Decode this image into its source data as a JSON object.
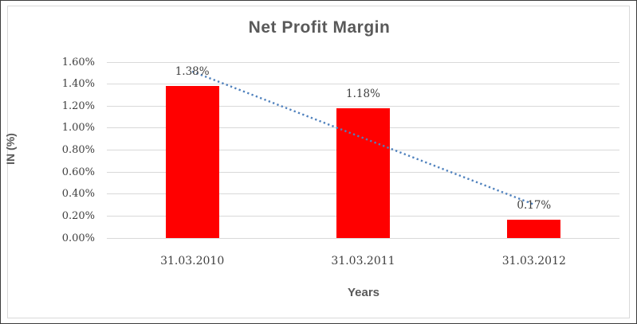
{
  "chart_data": {
    "type": "bar",
    "title": "Net Profit Margin",
    "xlabel": "Years",
    "ylabel": "IN (%)",
    "categories": [
      "31.03.2010",
      "31.03.2011",
      "31.03.2012"
    ],
    "values": [
      1.38,
      1.18,
      0.17
    ],
    "data_labels": [
      "1.38%",
      "1.18%",
      "0.17%"
    ],
    "y_ticks": [
      "1.60%",
      "1.40%",
      "1.20%",
      "1.00%",
      "0.80%",
      "0.60%",
      "0.40%",
      "0.20%",
      "0.00%"
    ],
    "ylim": [
      0,
      1.6
    ],
    "y_step": 0.2,
    "grid": true,
    "legend": "none",
    "bar_color": "#FF0000",
    "trendline": {
      "type": "linear",
      "style": "dotted",
      "color": "#4F81BD",
      "start_value": 1.515,
      "end_value": 0.305
    }
  },
  "colors": {
    "title_text": "#595959",
    "axis_text": "#404040",
    "gridline": "#D9D9D9",
    "outer_border": "#3C3C3C",
    "inner_border": "#D9D9D9",
    "background": "#FFFFFF"
  }
}
